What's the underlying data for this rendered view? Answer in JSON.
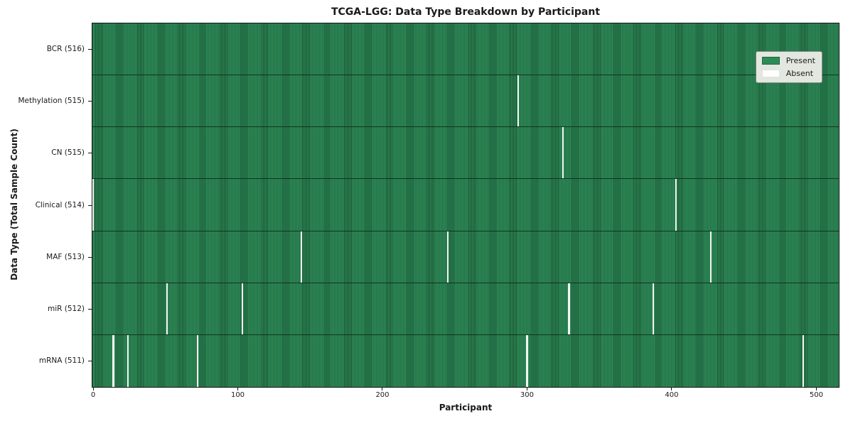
{
  "chart_data": {
    "type": "heatmap",
    "title": "TCGA-LGG: Data Type Breakdown by Participant",
    "xlabel": "Participant",
    "ylabel": "Data Type (Total Sample Count)",
    "x_ticks": [
      0,
      100,
      200,
      300,
      400,
      500
    ],
    "xlim": [
      0,
      516
    ],
    "n_participants": 516,
    "grid": false,
    "legend": {
      "present_label": "Present",
      "absent_label": "Absent",
      "position": "upper right"
    },
    "colors": {
      "present": "#2e8b57",
      "present_edge": "#1b5434",
      "absent": "#ffffff",
      "axis": "#151515",
      "legend_bg": "#e2e7df"
    },
    "rows": [
      {
        "label": "BCR (516)",
        "data_type": "BCR",
        "total_sample_count": 516,
        "absent_participants": []
      },
      {
        "label": "Methylation (515)",
        "data_type": "Methylation",
        "total_sample_count": 515,
        "absent_participants": [
          294
        ]
      },
      {
        "label": "CN (515)",
        "data_type": "CN",
        "total_sample_count": 515,
        "absent_participants": [
          325
        ]
      },
      {
        "label": "Clinical (514)",
        "data_type": "Clinical",
        "total_sample_count": 514,
        "absent_participants": [
          0,
          403
        ]
      },
      {
        "label": "MAF (513)",
        "data_type": "MAF",
        "total_sample_count": 513,
        "absent_participants": [
          144,
          245,
          427
        ]
      },
      {
        "label": "miR (512)",
        "data_type": "miR",
        "total_sample_count": 512,
        "absent_participants": [
          51,
          103,
          329,
          387
        ]
      },
      {
        "label": "mRNA (511)",
        "data_type": "mRNA",
        "total_sample_count": 511,
        "absent_participants": [
          14,
          24,
          72,
          300,
          491
        ]
      }
    ]
  }
}
